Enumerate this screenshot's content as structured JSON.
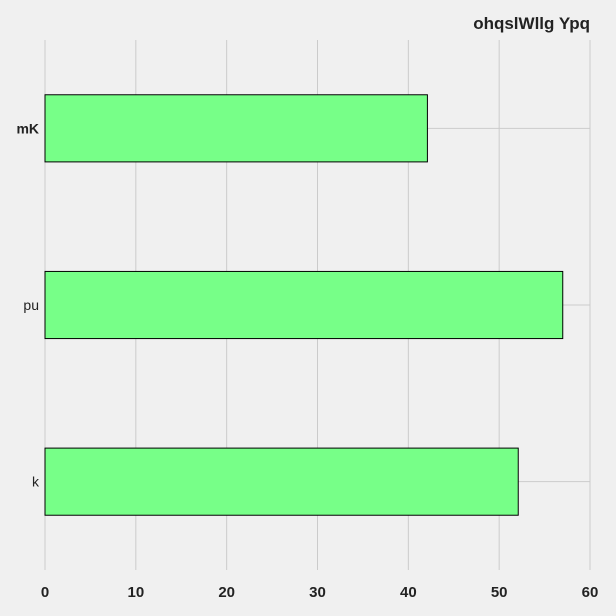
{
  "chart_data": {
    "type": "bar",
    "orientation": "horizontal",
    "title": "ohqslWllg Ypq",
    "xlabel": "",
    "ylabel": "",
    "categories": [
      "mK",
      "pu",
      "k"
    ],
    "values": [
      42.1,
      57.0,
      52.1
    ],
    "xlim": [
      0,
      60
    ],
    "xticks": [
      "0",
      "10",
      "20",
      "30",
      "40",
      "50",
      "60"
    ],
    "grid": true,
    "legend": "none",
    "colors": {
      "background": "#f0f0f0",
      "bar_fill": "#77ff88",
      "bar_edge": "#000000",
      "grid": "#cbcbcb",
      "text": "#222222"
    }
  }
}
